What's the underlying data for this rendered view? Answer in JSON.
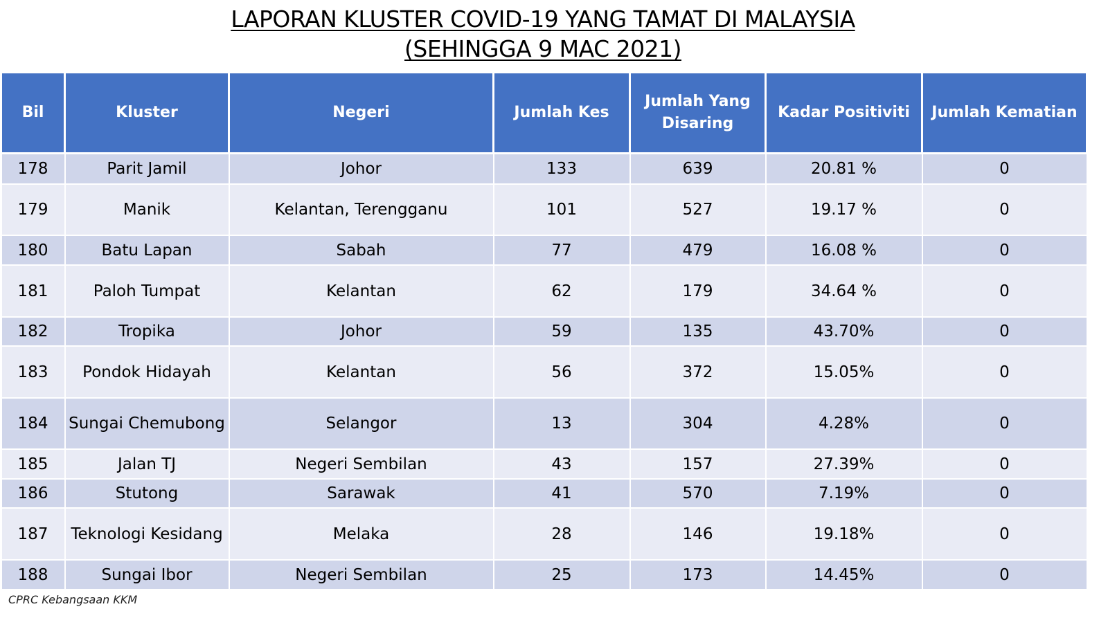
{
  "title": {
    "line1": "LAPORAN KLUSTER COVID-19 YANG TAMAT DI MALAYSIA",
    "line2": "(SEHINGGA  9 MAC 2021)"
  },
  "table": {
    "headers": [
      "Bil",
      "Kluster",
      "Negeri",
      "Jumlah Kes",
      "Jumlah Yang Disaring",
      "Kadar Positiviti",
      "Jumlah Kematian"
    ],
    "rows": [
      [
        "178",
        "Parit Jamil",
        "Johor",
        "133",
        "639",
        "20.81 %",
        "0"
      ],
      [
        "179",
        "Manik",
        "Kelantan, Terengganu",
        "101",
        "527",
        "19.17 %",
        "0"
      ],
      [
        "180",
        "Batu Lapan",
        "Sabah",
        "77",
        "479",
        "16.08 %",
        "0"
      ],
      [
        "181",
        "Paloh Tumpat",
        "Kelantan",
        "62",
        "179",
        "34.64 %",
        "0"
      ],
      [
        "182",
        "Tropika",
        "Johor",
        "59",
        "135",
        "43.70%",
        "0"
      ],
      [
        "183",
        "Pondok Hidayah",
        "Kelantan",
        "56",
        "372",
        "15.05%",
        "0"
      ],
      [
        "184",
        "Sungai Chemubong",
        "Selangor",
        "13",
        "304",
        "4.28%",
        "0"
      ],
      [
        "185",
        "Jalan TJ",
        "Negeri Sembilan",
        "43",
        "157",
        "27.39%",
        "0"
      ],
      [
        "186",
        "Stutong",
        "Sarawak",
        "41",
        "570",
        "7.19%",
        "0"
      ],
      [
        "187",
        "Teknologi Kesidang",
        "Melaka",
        "28",
        "146",
        "19.18%",
        "0"
      ],
      [
        "188",
        "Sungai Ibor",
        "Negeri Sembilan",
        "25",
        "173",
        "14.45%",
        "0"
      ]
    ]
  },
  "footer": "CPRC Kebangsaan KKM",
  "colors": {
    "header_bg": "#4472C4",
    "row_dark": "#CFD5EA",
    "row_light": "#E9EBF5"
  }
}
